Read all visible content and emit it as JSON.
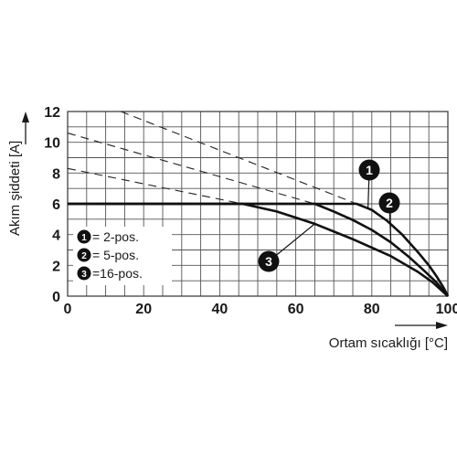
{
  "chart_data": {
    "type": "line",
    "xlabel": "Ortam sıcaklığı [°C]",
    "ylabel": "Akım şiddeti [A]",
    "xlim": [
      0,
      100
    ],
    "ylim": [
      0,
      12
    ],
    "x_ticks": [
      "0",
      "20",
      "40",
      "60",
      "80",
      "100"
    ],
    "y_ticks": [
      "0",
      "2",
      "4",
      "6",
      "8",
      "10",
      "12"
    ],
    "grid": true,
    "series": [
      {
        "marker": "1",
        "x": [
          0,
          76,
          80,
          84,
          88,
          92,
          95,
          97,
          99,
          100
        ],
        "y": [
          6,
          6,
          5.6,
          4.9,
          4.0,
          2.9,
          2.0,
          1.3,
          0.5,
          0
        ]
      },
      {
        "marker": "2",
        "x": [
          0,
          65,
          70,
          75,
          80,
          85,
          90,
          94,
          97,
          100
        ],
        "y": [
          6,
          6,
          5.5,
          4.95,
          4.3,
          3.5,
          2.5,
          1.6,
          0.9,
          0
        ]
      },
      {
        "marker": "3",
        "x": [
          0,
          46,
          55,
          65,
          75,
          85,
          92,
          96,
          100
        ],
        "y": [
          6,
          6,
          5.5,
          4.7,
          3.7,
          2.6,
          1.6,
          0.9,
          0
        ]
      }
    ],
    "dashed_extensions": [
      {
        "marker": "1",
        "x": [
          14,
          76
        ],
        "y": [
          12,
          6
        ]
      },
      {
        "marker": "2",
        "x": [
          0,
          65
        ],
        "y": [
          10.6,
          6
        ]
      },
      {
        "marker": "3",
        "x": [
          0,
          46
        ],
        "y": [
          8.3,
          6
        ]
      }
    ],
    "legend": {
      "placement": "lower-left",
      "entries": [
        {
          "marker": "1",
          "label": "= 2-pos."
        },
        {
          "marker": "2",
          "label": "= 5-pos."
        },
        {
          "marker": "3",
          "label": "=16-pos."
        }
      ]
    },
    "callouts": [
      {
        "marker": "1",
        "anchor_series": "1",
        "anchor_x": 79
      },
      {
        "marker": "2",
        "anchor_series": "2",
        "anchor_x": 85
      },
      {
        "marker": "3",
        "anchor_series": "3",
        "anchor_x": 65
      }
    ]
  }
}
